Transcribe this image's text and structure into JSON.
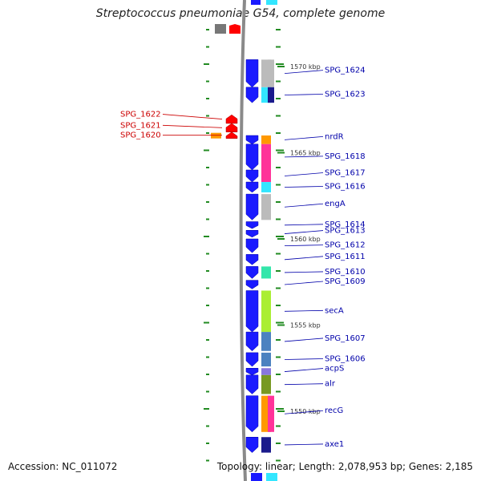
{
  "title": "Streptococcus pneumoniae G54, complete genome",
  "footer": {
    "accession": "Accession: NC_011072",
    "topology": "Topology: linear; Length: 2,078,953 bp; Genes: 2,185"
  },
  "colors": {
    "backbone": "#8a8a8a",
    "forward_gene": "#1a1aff",
    "reverse_gene": "#ff0000",
    "forward_label": "#0000aa",
    "reverse_label": "#cc0000",
    "tick": "#228b22",
    "orange": "#ff9900",
    "magenta": "#ff3399",
    "cyan": "#33e6ff",
    "lightgray": "#bbbbbb",
    "green": "#33e6aa",
    "lime": "#aaee33",
    "steelblue": "#4b82c0",
    "lavender": "#8877dd",
    "olive": "#779922",
    "navy": "#1a1a8c"
  },
  "scale_labels": [
    {
      "text": "1570 kbp",
      "kbp": 1570
    },
    {
      "text": "1565 kbp",
      "kbp": 1565
    },
    {
      "text": "1560 kbp",
      "kbp": 1560
    },
    {
      "text": "1555 kbp",
      "kbp": 1555
    },
    {
      "text": "1550 kbp",
      "kbp": 1550
    }
  ],
  "forward_genes": [
    {
      "name": "SPG_1624",
      "start": 1570.4,
      "end": 1568.8,
      "cog": "lightgray",
      "cog2": "lightgray"
    },
    {
      "name": "SPG_1623",
      "start": 1568.8,
      "end": 1567.9,
      "cog": "cyan",
      "cog2": "navy"
    },
    {
      "name": "nrdR",
      "start": 1566.0,
      "end": 1565.5,
      "cog": "orange"
    },
    {
      "name": "SPG_1618",
      "start": 1565.5,
      "end": 1564.0,
      "cog": "magenta"
    },
    {
      "name": "SPG_1617",
      "start": 1564.0,
      "end": 1563.3,
      "cog": "magenta"
    },
    {
      "name": "SPG_1616",
      "start": 1563.3,
      "end": 1562.7,
      "cog": "cyan"
    },
    {
      "name": "engA",
      "start": 1562.6,
      "end": 1561.1,
      "cog": "lightgray"
    },
    {
      "name": "SPG_1614",
      "start": 1561.0,
      "end": 1560.6,
      "cog": ""
    },
    {
      "name": "SPG_1613",
      "start": 1560.5,
      "end": 1560.1,
      "cog": ""
    },
    {
      "name": "SPG_1612",
      "start": 1560.0,
      "end": 1559.2,
      "cog": ""
    },
    {
      "name": "SPG_1611",
      "start": 1559.1,
      "end": 1558.5,
      "cog": ""
    },
    {
      "name": "SPG_1610",
      "start": 1558.4,
      "end": 1557.7,
      "cog": "green"
    },
    {
      "name": "SPG_1609",
      "start": 1557.6,
      "end": 1557.1,
      "cog": ""
    },
    {
      "name": "secA",
      "start": 1557.0,
      "end": 1554.6,
      "cog": "lime"
    },
    {
      "name": "SPG_1607",
      "start": 1554.6,
      "end": 1553.5,
      "cog": "steelblue"
    },
    {
      "name": "SPG_1606",
      "start": 1553.4,
      "end": 1552.6,
      "cog": "steelblue"
    },
    {
      "name": "acpS",
      "start": 1552.5,
      "end": 1552.1,
      "cog": "lavender"
    },
    {
      "name": "alr",
      "start": 1552.1,
      "end": 1551.0,
      "cog": "olive"
    },
    {
      "name": "recG",
      "start": 1550.9,
      "end": 1548.8,
      "cog": "orange",
      "cog2": "magenta"
    },
    {
      "name": "axe1",
      "start": 1548.5,
      "end": 1547.6,
      "cog": "navy"
    }
  ],
  "reverse_genes": [
    {
      "name": "SPG_1622",
      "start": 1567.2,
      "end": 1566.7,
      "cog": ""
    },
    {
      "name": "SPG_1621",
      "start": 1566.7,
      "end": 1566.2,
      "cog": ""
    },
    {
      "name": "SPG_1620",
      "start": 1566.2,
      "end": 1565.9,
      "cog": "orange"
    }
  ]
}
